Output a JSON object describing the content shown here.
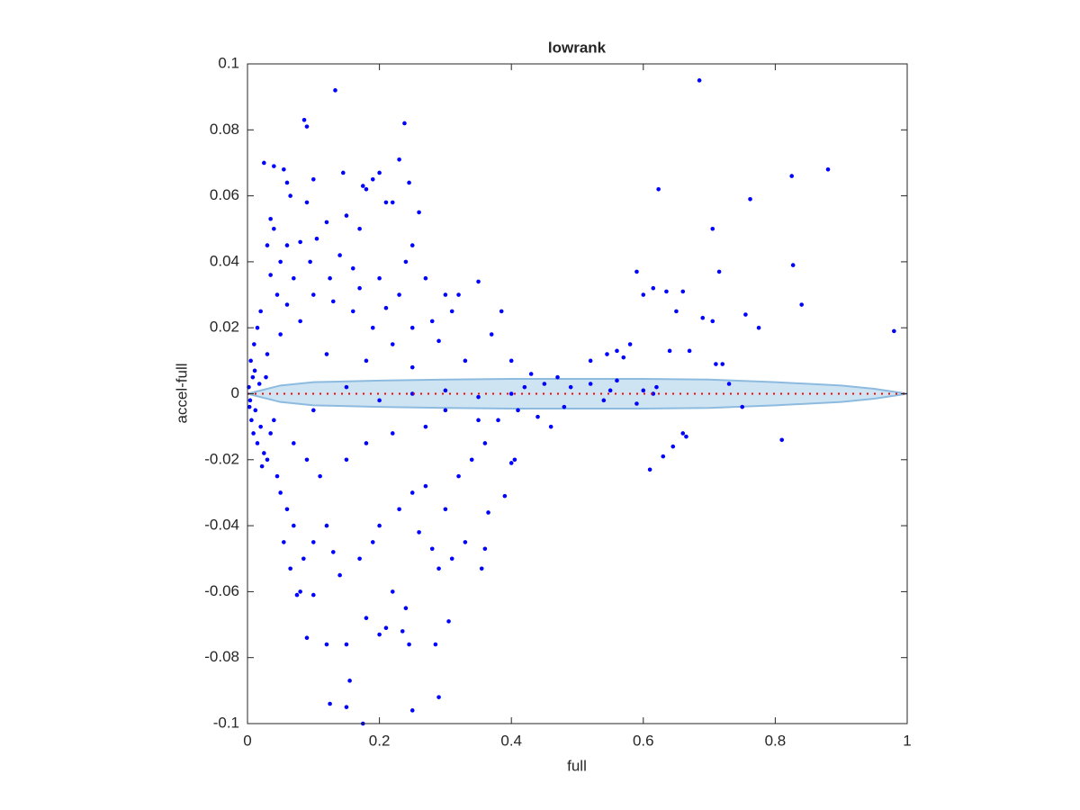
{
  "chart_data": {
    "type": "scatter",
    "title": "lowrank",
    "xlabel": "full",
    "ylabel": "accel-full",
    "xlim": [
      0,
      1
    ],
    "ylim": [
      -0.1,
      0.1
    ],
    "xticks": [
      0,
      0.2,
      0.4,
      0.6,
      0.8,
      1
    ],
    "yticks": [
      -0.1,
      -0.08,
      -0.06,
      -0.04,
      -0.02,
      0,
      0.02,
      0.04,
      0.06,
      0.08,
      0.1
    ],
    "band": {
      "color": "#cfe4f3",
      "edge_color": "#8dbbe0",
      "x": [
        0,
        0.05,
        0.1,
        0.2,
        0.3,
        0.4,
        0.5,
        0.6,
        0.7,
        0.8,
        0.9,
        0.95,
        1
      ],
      "upper": [
        0,
        0.0025,
        0.0035,
        0.004,
        0.0043,
        0.0045,
        0.0045,
        0.0045,
        0.0043,
        0.0035,
        0.0025,
        0.0015,
        0
      ],
      "lower": [
        0,
        -0.0025,
        -0.0035,
        -0.004,
        -0.0043,
        -0.0045,
        -0.0045,
        -0.0045,
        -0.0043,
        -0.0035,
        -0.0025,
        -0.0015,
        0
      ]
    },
    "reference_line": {
      "y": 0,
      "color": "#ff0000"
    },
    "series": [
      {
        "color": "#0000ff",
        "x": [
          0.133,
          0.086,
          0.09,
          0.238,
          0.685,
          0.88,
          0.825,
          0.762,
          0.705,
          0.623,
          0.715,
          0.827,
          0.84,
          0.98,
          0.755,
          0.775,
          0.705,
          0.69,
          0.65,
          0.66,
          0.635,
          0.615,
          0.6,
          0.59,
          0.58,
          0.56,
          0.57,
          0.545,
          0.52,
          0.64,
          0.67,
          0.71,
          0.72,
          0.61,
          0.63,
          0.645,
          0.66,
          0.665,
          0.75,
          0.81,
          0.73,
          0.615,
          0.6,
          0.55,
          0.175,
          0.15,
          0.125,
          0.155,
          0.25,
          0.29,
          0.285,
          0.12,
          0.15,
          0.245,
          0.2,
          0.21,
          0.235,
          0.305,
          0.075,
          0.08,
          0.1,
          0.09,
          0.18,
          0.22,
          0.24,
          0.355,
          0.36,
          0.365,
          0.39,
          0.405,
          0.4,
          0.29,
          0.31,
          0.33,
          0.025,
          0.04,
          0.055,
          0.06,
          0.1,
          0.145,
          0.175,
          0.2,
          0.19,
          0.23,
          0.245,
          0.21,
          0.22,
          0.18,
          0.26,
          0.25,
          0.24,
          0.17,
          0.15,
          0.12,
          0.105,
          0.09,
          0.065,
          0.035,
          0.03,
          0.04,
          0.06,
          0.05,
          0.08,
          0.14,
          0.16,
          0.2,
          0.23,
          0.27,
          0.3,
          0.32,
          0.35,
          0.31,
          0.29,
          0.28,
          0.25,
          0.22,
          0.19,
          0.16,
          0.13,
          0.1,
          0.07,
          0.045,
          0.02,
          0.015,
          0.01,
          0.005,
          0.03,
          0.05,
          0.08,
          0.12,
          0.18,
          0.25,
          0.33,
          0.37,
          0.385,
          0.4,
          0.43,
          0.47,
          0.49,
          0.45,
          0.42,
          0.002,
          0.004,
          0.008,
          0.012,
          0.018,
          0.006,
          0.02,
          0.015,
          0.025,
          0.03,
          0.022,
          0.035,
          0.045,
          0.05,
          0.06,
          0.07,
          0.055,
          0.065,
          0.085,
          0.1,
          0.12,
          0.13,
          0.14,
          0.17,
          0.19,
          0.2,
          0.23,
          0.25,
          0.27,
          0.26,
          0.28,
          0.3,
          0.32,
          0.34,
          0.36,
          0.38,
          0.41,
          0.44,
          0.46,
          0.48,
          0.35,
          0.3,
          0.27,
          0.22,
          0.18,
          0.15,
          0.11,
          0.09,
          0.07,
          0.04,
          0.1,
          0.15,
          0.2,
          0.25,
          0.3,
          0.35,
          0.4,
          0.52,
          0.54,
          0.56,
          0.59,
          0.62,
          0.17,
          0.21,
          0.125,
          0.095,
          0.06,
          0.035,
          0.028,
          0.011,
          0.003,
          0.009
        ],
        "values": [
          0.092,
          0.083,
          0.081,
          0.082,
          0.095,
          0.068,
          0.066,
          0.059,
          0.05,
          0.062,
          0.037,
          0.039,
          0.027,
          0.019,
          0.024,
          0.02,
          0.022,
          0.023,
          0.025,
          0.031,
          0.031,
          0.032,
          0.03,
          0.037,
          0.015,
          0.013,
          0.011,
          0.012,
          0.01,
          0.013,
          0.013,
          0.009,
          0.009,
          -0.023,
          -0.019,
          -0.016,
          -0.012,
          -0.013,
          -0.004,
          -0.014,
          0.003,
          0,
          0.001,
          0.001,
          -0.1,
          -0.095,
          -0.094,
          -0.087,
          -0.096,
          -0.092,
          -0.076,
          -0.076,
          -0.076,
          -0.076,
          -0.073,
          -0.071,
          -0.072,
          -0.069,
          -0.061,
          -0.06,
          -0.061,
          -0.074,
          -0.068,
          -0.06,
          -0.065,
          -0.053,
          -0.047,
          -0.036,
          -0.031,
          -0.02,
          -0.021,
          -0.053,
          -0.05,
          -0.045,
          0.07,
          0.069,
          0.068,
          0.064,
          0.065,
          0.067,
          0.063,
          0.067,
          0.065,
          0.071,
          0.064,
          0.058,
          0.058,
          0.062,
          0.055,
          0.045,
          0.04,
          0.05,
          0.054,
          0.052,
          0.047,
          0.058,
          0.06,
          0.053,
          0.045,
          0.05,
          0.045,
          0.04,
          0.046,
          0.042,
          0.038,
          0.035,
          0.03,
          0.035,
          0.03,
          0.03,
          0.034,
          0.025,
          0.016,
          0.022,
          0.02,
          0.015,
          0.02,
          0.025,
          0.028,
          0.03,
          0.035,
          0.03,
          0.025,
          0.02,
          0.015,
          0.01,
          0.012,
          0.018,
          0.022,
          0.012,
          0.01,
          0.008,
          0.01,
          0.018,
          0.025,
          0.01,
          0.006,
          0.005,
          0.002,
          0.003,
          0.002,
          0.002,
          -0.002,
          0.005,
          -0.005,
          0.003,
          -0.008,
          -0.01,
          -0.015,
          -0.018,
          -0.02,
          -0.022,
          -0.012,
          -0.025,
          -0.03,
          -0.035,
          -0.04,
          -0.045,
          -0.053,
          -0.05,
          -0.045,
          -0.04,
          -0.048,
          -0.055,
          -0.05,
          -0.045,
          -0.04,
          -0.035,
          -0.03,
          -0.028,
          -0.042,
          -0.047,
          -0.035,
          -0.025,
          -0.02,
          -0.015,
          -0.008,
          -0.005,
          -0.007,
          -0.01,
          -0.004,
          -0.008,
          -0.005,
          -0.01,
          -0.012,
          -0.015,
          -0.02,
          -0.025,
          -0.02,
          -0.015,
          -0.008,
          -0.005,
          0.002,
          -0.002,
          0,
          0.001,
          -0.001,
          0,
          0.003,
          -0.002,
          0.004,
          -0.003,
          0.002,
          0.032,
          0.026,
          0.035,
          0.04,
          0.027,
          0.036,
          0.005,
          0.007,
          -0.004,
          -0.012
        ]
      }
    ]
  }
}
